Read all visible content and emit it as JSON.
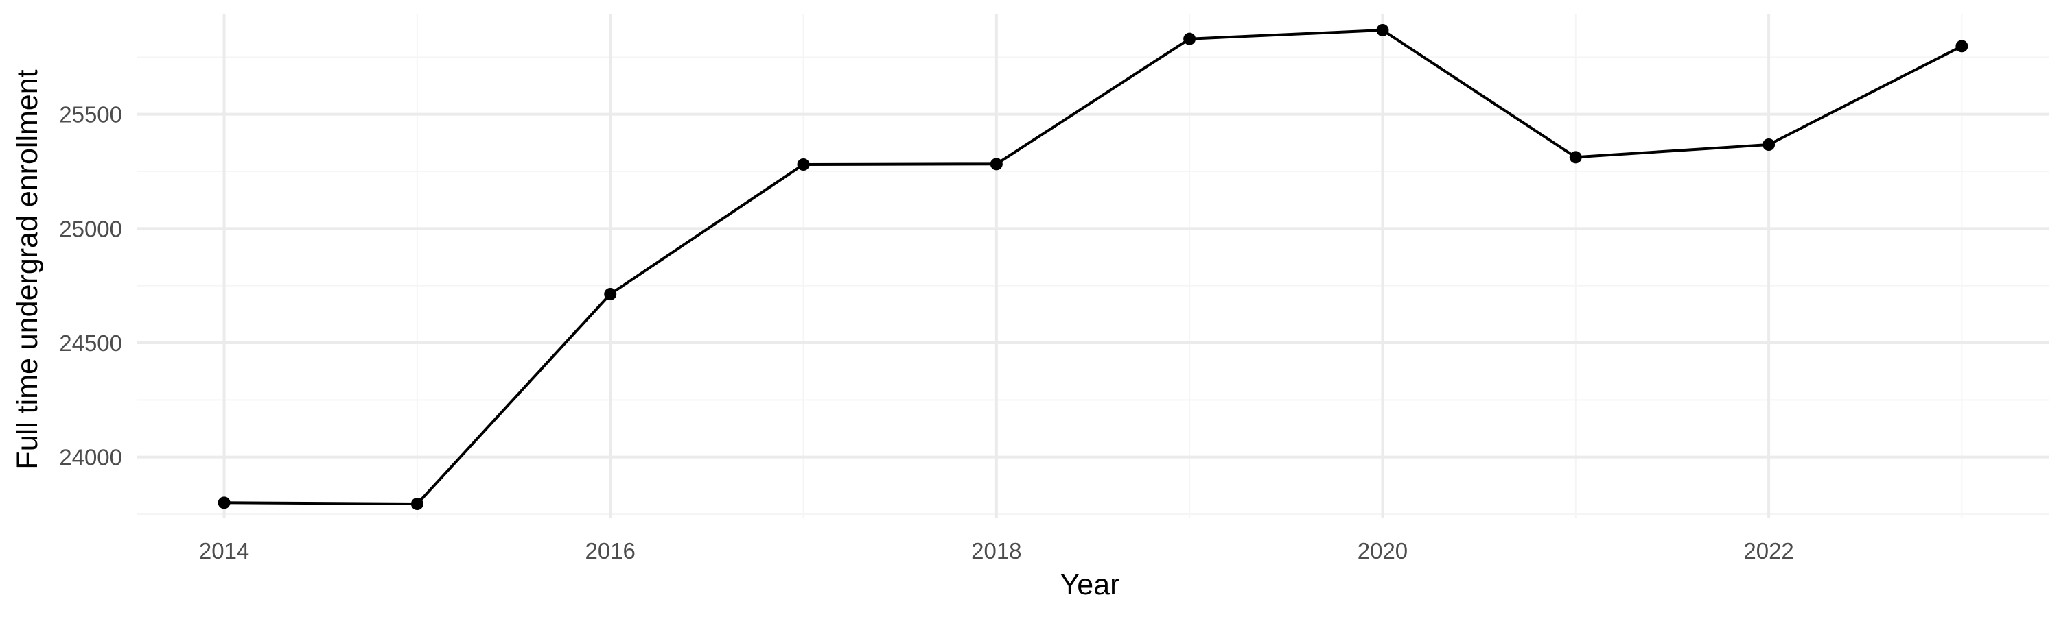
{
  "chart_data": {
    "type": "line",
    "title": "",
    "xlabel": "Year",
    "ylabel": "Full time undergrad enrollment",
    "x": [
      2014,
      2015,
      2016,
      2017,
      2018,
      2019,
      2020,
      2021,
      2022,
      2023
    ],
    "series": [
      {
        "values": [
          23800,
          23795,
          24713,
          25280,
          25282,
          25830,
          25868,
          25312,
          25367,
          25798
        ]
      }
    ],
    "xlim": [
      2013.55,
      2023.45
    ],
    "ylim": [
      23735,
      25940
    ],
    "x_ticks": [
      2014,
      2016,
      2018,
      2020,
      2022
    ],
    "x_tick_labels": [
      "2014",
      "2016",
      "2018",
      "2020",
      "2022"
    ],
    "y_ticks": [
      24000,
      24500,
      25000,
      25500
    ],
    "y_tick_labels": [
      "24000",
      "24500",
      "25000",
      "25500"
    ],
    "x_minor_ticks": [
      2015,
      2017,
      2019,
      2021,
      2023
    ],
    "y_minor_ticks": [
      23750,
      24250,
      24750,
      25250,
      25750
    ],
    "grid": true,
    "legend": "none",
    "colors": {
      "line": "#000000",
      "points": "#000000",
      "grid_major": "#ebebeb",
      "grid_minor": "#f5f5f5",
      "tick_text": "#4d4d4d",
      "axis_title": "#000000"
    }
  }
}
